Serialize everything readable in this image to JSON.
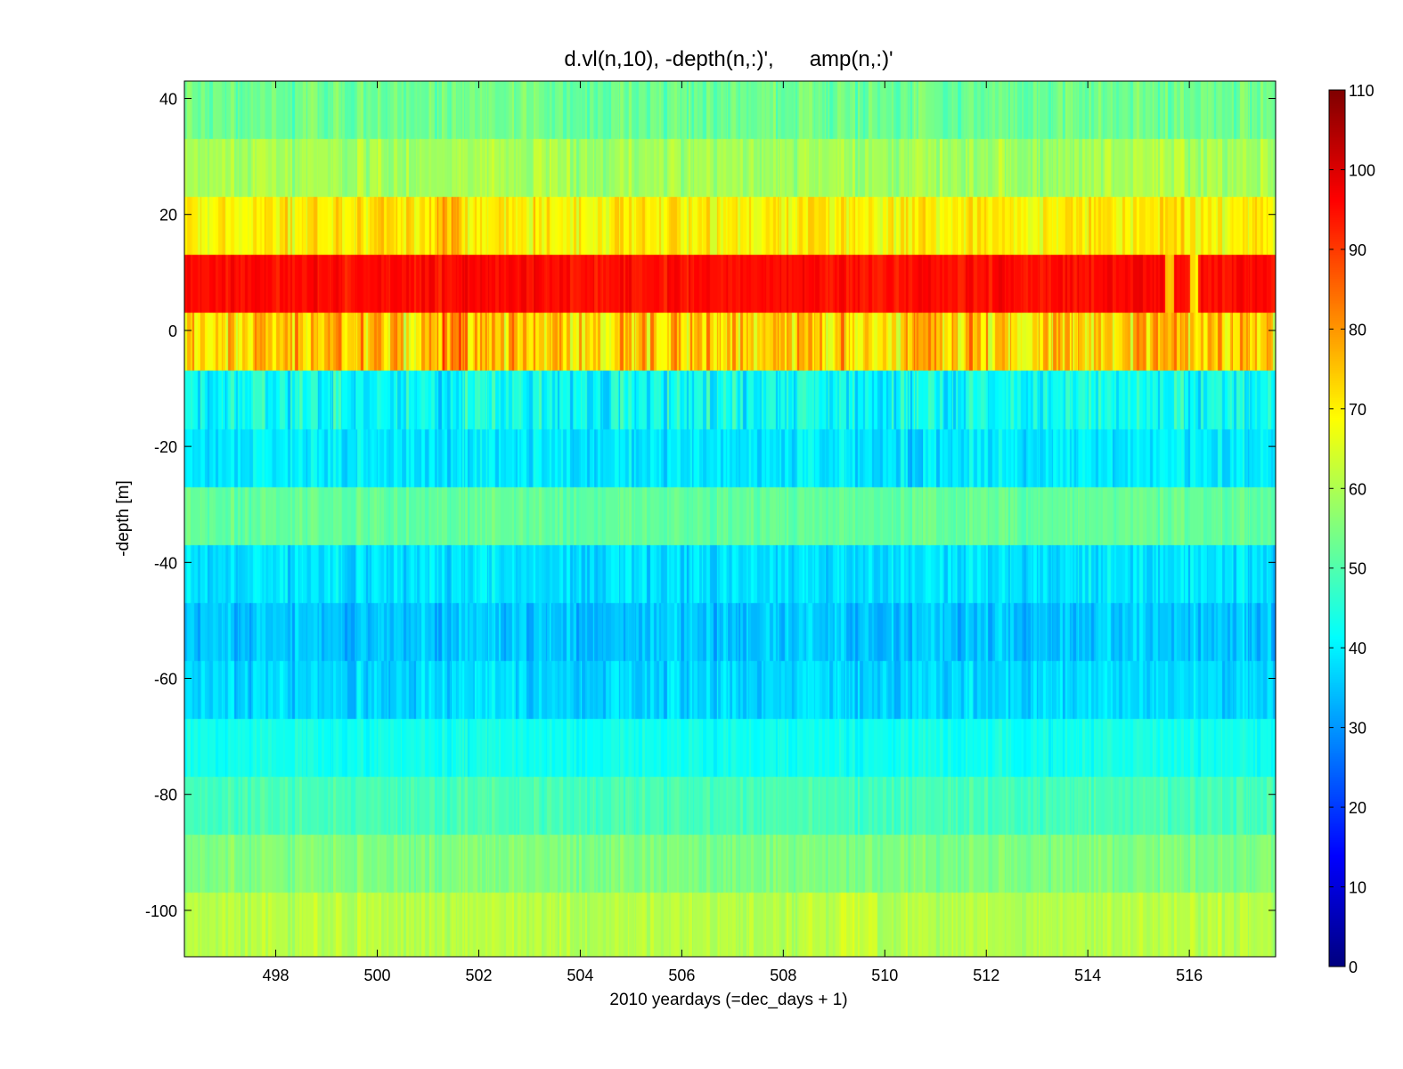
{
  "chart_data": {
    "type": "heatmap",
    "title": "d.vl(n,10), -depth(n,:)',      amp(n,:)'",
    "xlabel": "2010 yeardays (=dec_days + 1)",
    "ylabel": "-depth [m]",
    "xlim": [
      496.2,
      517.7
    ],
    "ylim": [
      -108,
      43
    ],
    "xticks": [
      498,
      500,
      502,
      504,
      506,
      508,
      510,
      512,
      514,
      516
    ],
    "xtick_labels": [
      "498",
      "500",
      "502",
      "504",
      "506",
      "508",
      "510",
      "512",
      "514",
      "516"
    ],
    "yticks": [
      40,
      20,
      0,
      -20,
      -40,
      -60,
      -80,
      -100
    ],
    "ytick_labels": [
      "40",
      "20",
      "0",
      "-20",
      "-40",
      "-60",
      "-80",
      "-100"
    ],
    "colormap": "jet",
    "clim": [
      0,
      110
    ],
    "colorbar_ticks": [
      0,
      10,
      20,
      30,
      40,
      50,
      60,
      70,
      80,
      90,
      100,
      110
    ],
    "colorbar_tick_labels": [
      "0",
      "10",
      "20",
      "30",
      "40",
      "50",
      "60",
      "70",
      "80",
      "90",
      "100",
      "110"
    ],
    "bin_depths": [
      38,
      28,
      18,
      8,
      -2,
      -12,
      -22,
      -32,
      -42,
      -52,
      -62,
      -72,
      -82,
      -92,
      -102
    ],
    "bin_edges": [
      43,
      33,
      23,
      13,
      3,
      -7,
      -17,
      -27,
      -37,
      -47,
      -57,
      -67,
      -77,
      -87,
      -97,
      -108
    ],
    "bin_mean_amp": [
      53,
      59,
      70,
      95,
      74,
      42,
      39,
      52,
      38,
      35,
      37,
      43,
      49,
      55,
      61
    ],
    "bin_variability": [
      3,
      3,
      4,
      2,
      7,
      5,
      3,
      2,
      3,
      3,
      3,
      2,
      2,
      2,
      2
    ],
    "features": [
      {
        "x": 501.4,
        "width": 0.5,
        "bins": [
          2,
          4
        ],
        "delta": 7
      },
      {
        "x": 500.4,
        "width": 0.6,
        "bins": [
          2
        ],
        "delta": 4
      },
      {
        "x": 515.6,
        "width": 0.15,
        "bins": [
          3
        ],
        "delta": -20
      },
      {
        "x": 516.1,
        "width": 0.1,
        "bins": [
          3
        ],
        "delta": -25
      },
      {
        "x": 510.6,
        "width": 0.3,
        "bins": [
          6
        ],
        "delta": -6
      },
      {
        "x": 509.5,
        "width": 0.7,
        "bins": [
          14
        ],
        "delta": 3
      }
    ]
  }
}
